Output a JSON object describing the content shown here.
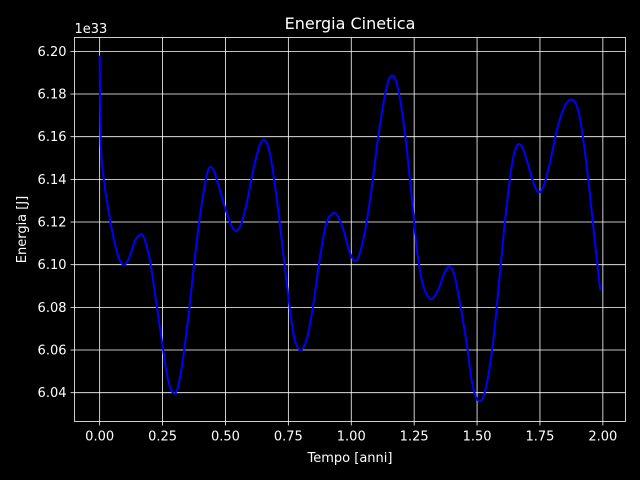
{
  "chart_data": {
    "type": "line",
    "title": "Energia Cinetica",
    "xlabel": "Tempo [anni]",
    "ylabel": "Energia [J]",
    "offset_label": "1e33",
    "xlim": [
      -0.1,
      2.09
    ],
    "ylim": [
      6.0265,
      6.2065
    ],
    "x_ticks": [
      0.0,
      0.25,
      0.5,
      0.75,
      1.0,
      1.25,
      1.5,
      1.75,
      2.0
    ],
    "x_tick_labels": [
      "0.00",
      "0.25",
      "0.50",
      "0.75",
      "1.00",
      "1.25",
      "1.50",
      "1.75",
      "2.00"
    ],
    "y_ticks": [
      6.04,
      6.06,
      6.08,
      6.1,
      6.12,
      6.14,
      6.16,
      6.18,
      6.2
    ],
    "y_tick_labels": [
      "6.04",
      "6.06",
      "6.08",
      "6.10",
      "6.12",
      "6.14",
      "6.16",
      "6.18",
      "6.20"
    ],
    "grid": true,
    "background_color": "#000000",
    "foreground_color": "#ffffff",
    "series": [
      {
        "color": "#0000ff",
        "points": [
          [
            0.0,
            6.198
          ],
          [
            0.005,
            6.155
          ],
          [
            0.02,
            6.137
          ],
          [
            0.04,
            6.122
          ],
          [
            0.06,
            6.11
          ],
          [
            0.08,
            6.102
          ],
          [
            0.1,
            6.1
          ],
          [
            0.12,
            6.104
          ],
          [
            0.14,
            6.111
          ],
          [
            0.16,
            6.114
          ],
          [
            0.175,
            6.113
          ],
          [
            0.2,
            6.102
          ],
          [
            0.225,
            6.082
          ],
          [
            0.25,
            6.062
          ],
          [
            0.27,
            6.047
          ],
          [
            0.29,
            6.04
          ],
          [
            0.31,
            6.042
          ],
          [
            0.33,
            6.055
          ],
          [
            0.355,
            6.078
          ],
          [
            0.38,
            6.105
          ],
          [
            0.405,
            6.128
          ],
          [
            0.43,
            6.144
          ],
          [
            0.45,
            6.145
          ],
          [
            0.47,
            6.138
          ],
          [
            0.5,
            6.126
          ],
          [
            0.525,
            6.118
          ],
          [
            0.545,
            6.116
          ],
          [
            0.565,
            6.12
          ],
          [
            0.59,
            6.132
          ],
          [
            0.615,
            6.147
          ],
          [
            0.64,
            6.157
          ],
          [
            0.66,
            6.158
          ],
          [
            0.68,
            6.15
          ],
          [
            0.705,
            6.13
          ],
          [
            0.73,
            6.105
          ],
          [
            0.755,
            6.08
          ],
          [
            0.775,
            6.065
          ],
          [
            0.8,
            6.06
          ],
          [
            0.825,
            6.066
          ],
          [
            0.85,
            6.082
          ],
          [
            0.875,
            6.103
          ],
          [
            0.9,
            6.119
          ],
          [
            0.925,
            6.124
          ],
          [
            0.945,
            6.123
          ],
          [
            0.97,
            6.116
          ],
          [
            0.99,
            6.107
          ],
          [
            1.01,
            6.102
          ],
          [
            1.03,
            6.104
          ],
          [
            1.055,
            6.116
          ],
          [
            1.08,
            6.135
          ],
          [
            1.105,
            6.158
          ],
          [
            1.13,
            6.177
          ],
          [
            1.15,
            6.187
          ],
          [
            1.17,
            6.188
          ],
          [
            1.19,
            6.18
          ],
          [
            1.215,
            6.16
          ],
          [
            1.24,
            6.132
          ],
          [
            1.26,
            6.108
          ],
          [
            1.28,
            6.093
          ],
          [
            1.3,
            6.086
          ],
          [
            1.32,
            6.084
          ],
          [
            1.345,
            6.088
          ],
          [
            1.37,
            6.096
          ],
          [
            1.39,
            6.099
          ],
          [
            1.41,
            6.095
          ],
          [
            1.435,
            6.08
          ],
          [
            1.46,
            6.062
          ],
          [
            1.48,
            6.045
          ],
          [
            1.5,
            6.037
          ],
          [
            1.52,
            6.037
          ],
          [
            1.54,
            6.045
          ],
          [
            1.565,
            6.065
          ],
          [
            1.59,
            6.095
          ],
          [
            1.615,
            6.125
          ],
          [
            1.64,
            6.148
          ],
          [
            1.66,
            6.156
          ],
          [
            1.68,
            6.155
          ],
          [
            1.7,
            6.148
          ],
          [
            1.725,
            6.138
          ],
          [
            1.745,
            6.134
          ],
          [
            1.765,
            6.137
          ],
          [
            1.79,
            6.148
          ],
          [
            1.815,
            6.162
          ],
          [
            1.84,
            6.172
          ],
          [
            1.865,
            6.177
          ],
          [
            1.89,
            6.176
          ],
          [
            1.91,
            6.168
          ],
          [
            1.935,
            6.147
          ],
          [
            1.96,
            6.12
          ],
          [
            1.98,
            6.098
          ],
          [
            1.99,
            6.088
          ]
        ]
      }
    ]
  }
}
